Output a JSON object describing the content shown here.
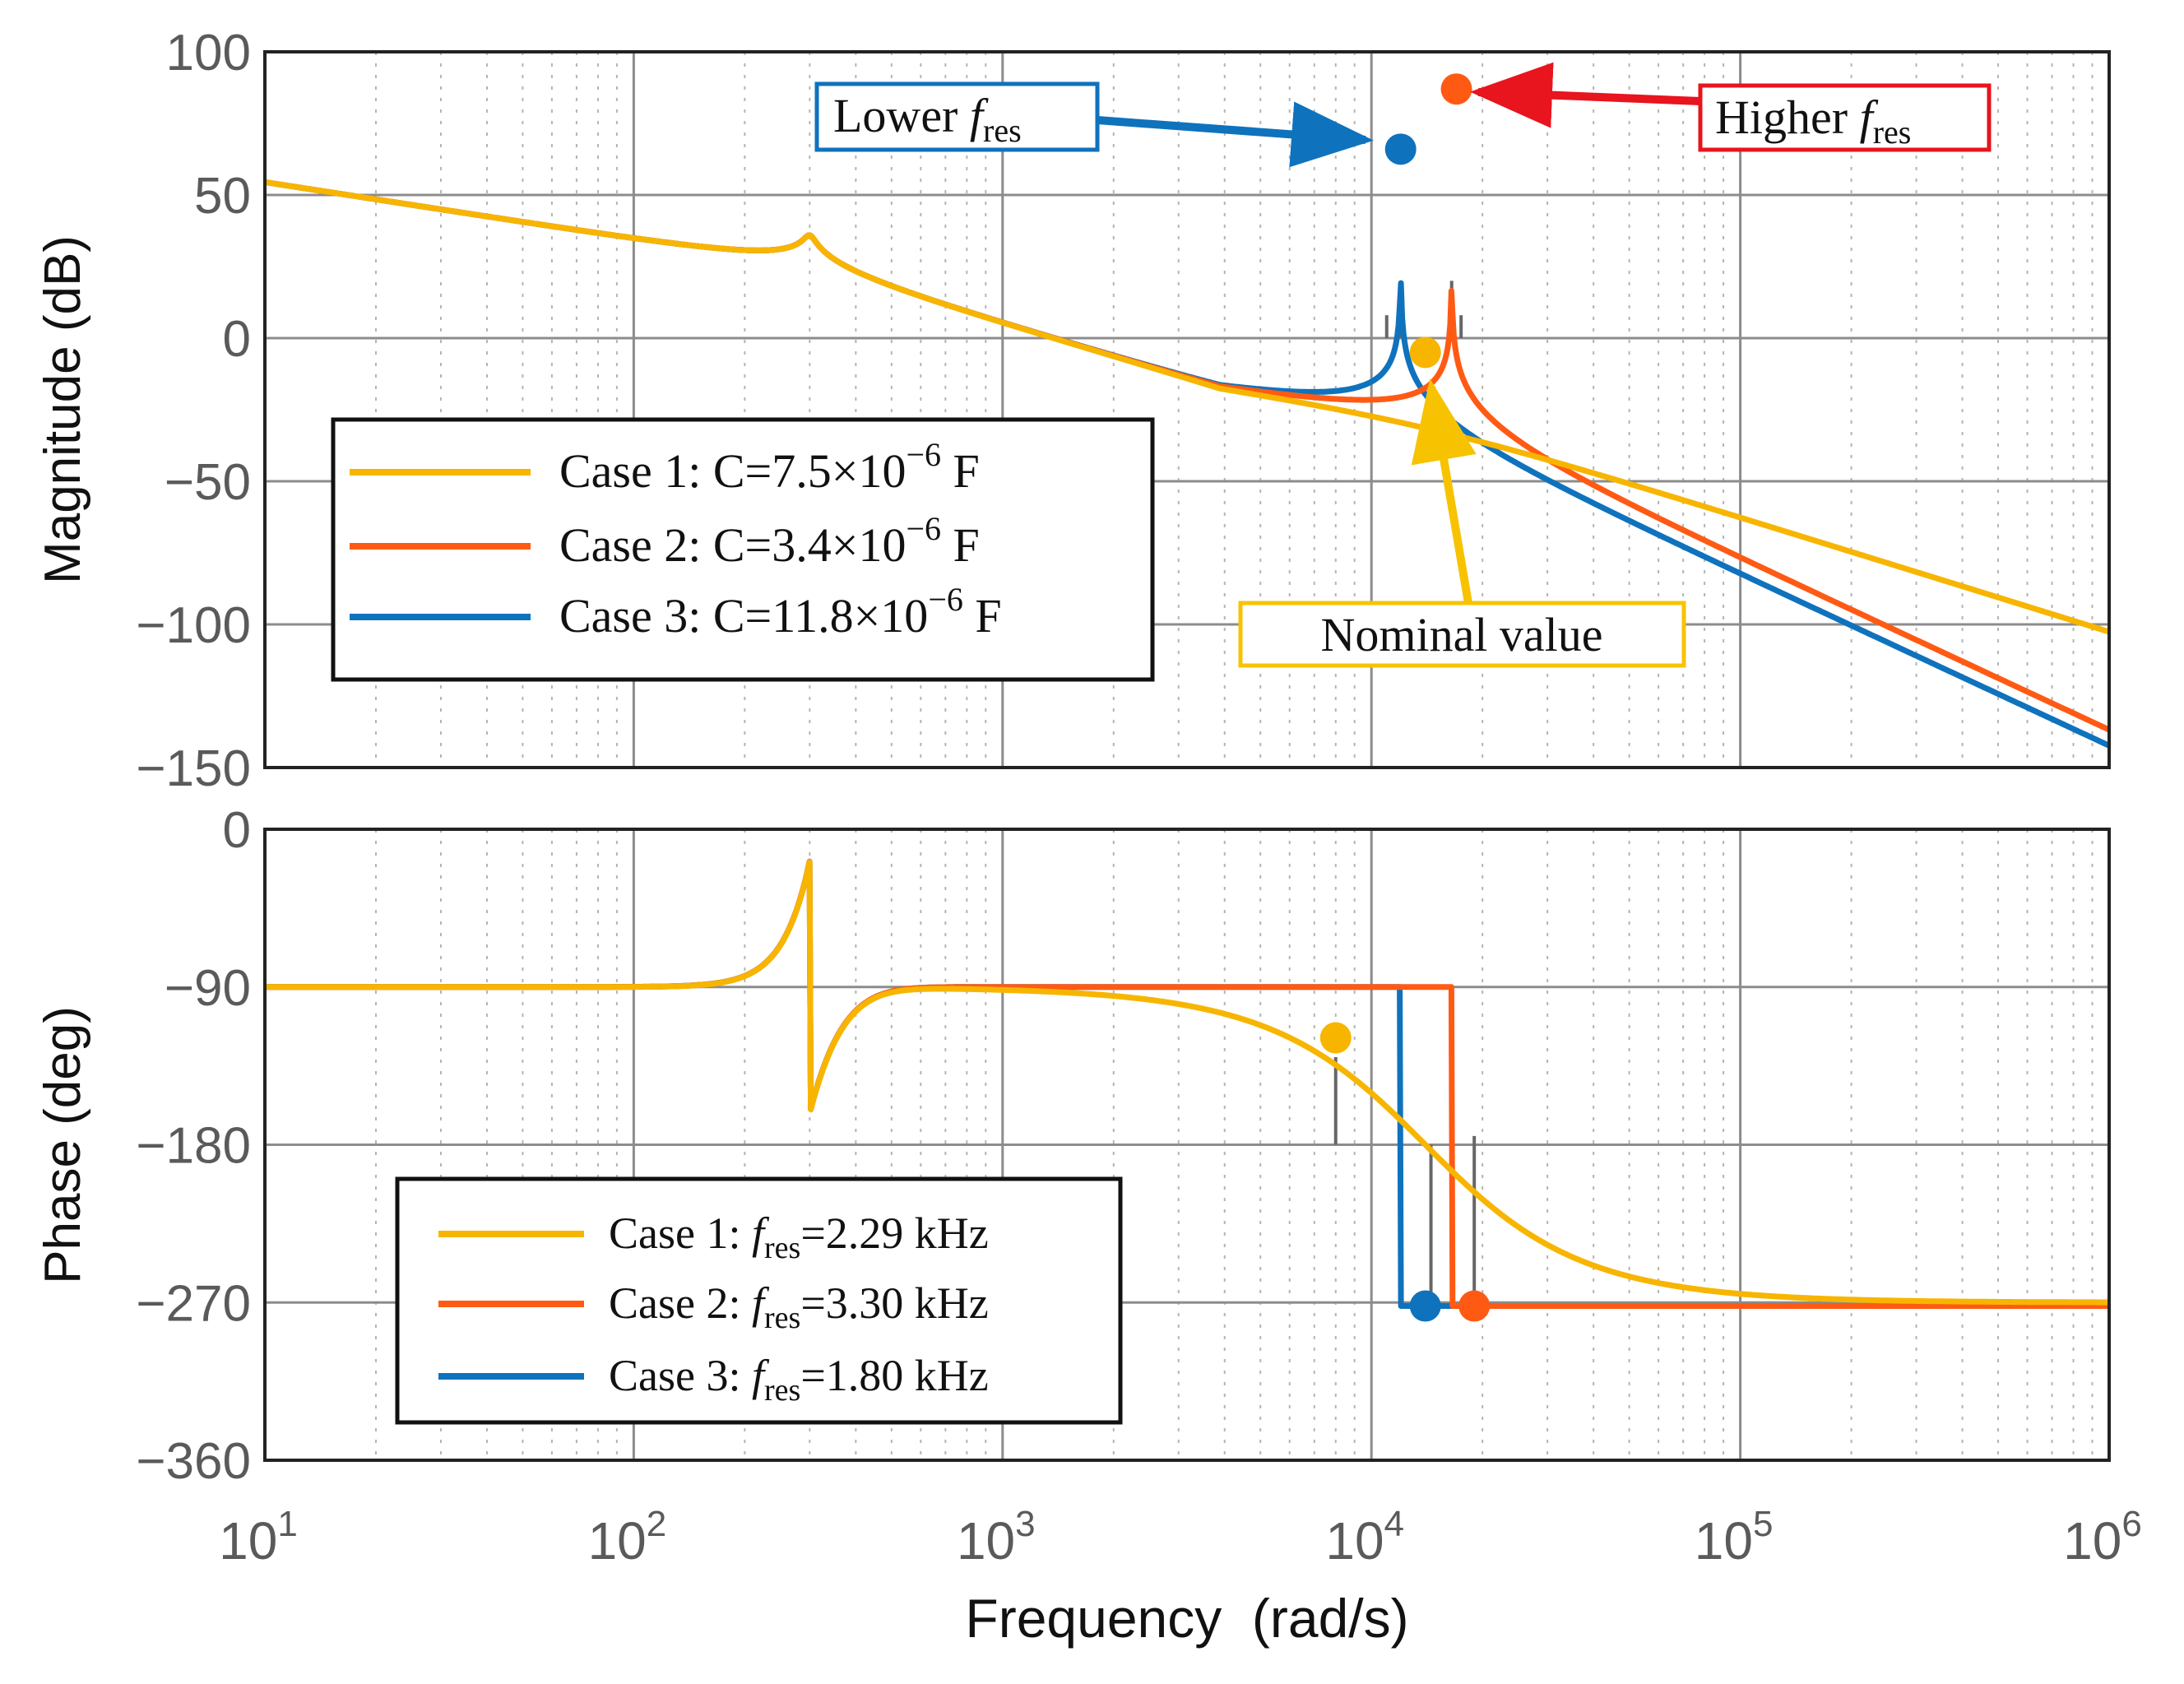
{
  "colors": {
    "case1": "#F7B500",
    "case2": "#FF5A14",
    "case3": "#0F72BD",
    "axes": "#222222",
    "grid_major": "#8c8c8c",
    "grid_minor": "#b4b4b4",
    "stem": "#666666",
    "callout_lower": "#0F72BD",
    "callout_higher": "#E8141E",
    "callout_nominal": "#F7C300"
  },
  "chart_data": [
    {
      "type": "line",
      "panel": "magnitude",
      "ylabel": "Magnitude (dB)",
      "xlabel": "",
      "xscale": "log",
      "xlim": [
        10,
        1000000
      ],
      "ylim": [
        -150,
        100
      ],
      "yticks": [
        "100",
        "50",
        "0",
        "−50",
        "−100",
        "−150"
      ],
      "grid": true,
      "legend_position": "middle-left",
      "series": [
        {
          "name": "Case 1: C=7.5×10−6 F",
          "legend": {
            "prefix": "Case 1: C=7.5×10",
            "exp": "−6",
            "suffix": " F"
          }
        },
        {
          "name": "Case 2: C=3.4×10−6 F",
          "legend": {
            "prefix": "Case 2: C=3.4×10",
            "exp": "−6",
            "suffix": " F"
          }
        },
        {
          "name": "Case 3: C=11.8×10−6 F",
          "legend": {
            "prefix": "Case 3: C=11.8×10",
            "exp": "−6",
            "suffix": " F"
          }
        }
      ],
      "markers": [
        {
          "series": 2,
          "x": 12000,
          "y": 66
        },
        {
          "series": 1,
          "x": 17000,
          "y": 87
        },
        {
          "series": 0,
          "x": 14000,
          "y": -5
        }
      ],
      "annotations": {
        "lower": {
          "prefix": "Lower ",
          "f": "f",
          "sub": "res"
        },
        "higher": {
          "prefix": "Higher ",
          "f": "f",
          "sub": "res"
        },
        "nominal": {
          "text": "Nominal value"
        }
      }
    },
    {
      "type": "line",
      "panel": "phase",
      "ylabel": "Phase (deg)",
      "xlabel": "Frequency  (rad/s)",
      "xscale": "log",
      "xlim": [
        10,
        1000000
      ],
      "ylim": [
        -360,
        0
      ],
      "yticks": [
        "0",
        "−90",
        "−180",
        "−270",
        "−360"
      ],
      "xticks": [
        "10",
        "10",
        "10",
        "10",
        "10",
        "10"
      ],
      "xtick_exps": [
        "1",
        "2",
        "3",
        "4",
        "5",
        "6"
      ],
      "grid": true,
      "legend_position": "bottom-left",
      "series": [
        {
          "name": "Case 1: fres=2.29 kHz",
          "legend": {
            "prefix": "Case 1: ",
            "f": "f",
            "sub": "res",
            "suffix": "=2.29 kHz"
          }
        },
        {
          "name": "Case 2: fres=3.30 kHz",
          "legend": {
            "prefix": "Case 2: ",
            "f": "f",
            "sub": "res",
            "suffix": "=3.30 kHz"
          }
        },
        {
          "name": "Case 3: fres=1.80 kHz",
          "legend": {
            "prefix": "Case 3: ",
            "f": "f",
            "sub": "res",
            "suffix": "=1.80 kHz"
          }
        }
      ],
      "markers": [
        {
          "series": 0,
          "x": 8000,
          "y": -119
        },
        {
          "series": 2,
          "x": 14000,
          "y": -272
        },
        {
          "series": 1,
          "x": 19000,
          "y": -272
        }
      ]
    }
  ]
}
